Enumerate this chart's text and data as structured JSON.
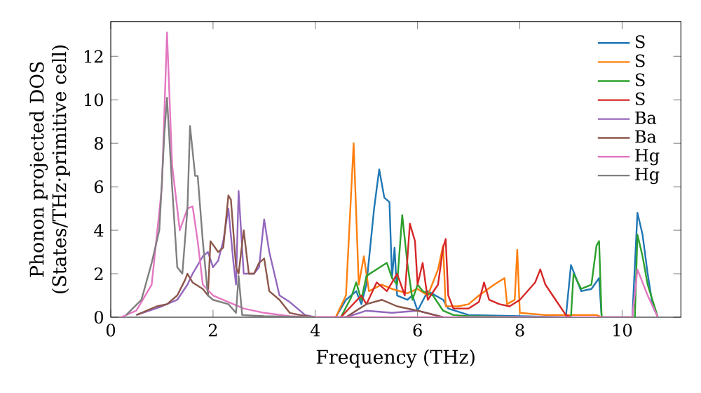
{
  "chart_data": {
    "type": "line",
    "xlabel": "Frequency (THz)",
    "ylabel": "Phonon projected DOS (States/THz·primitive cell)",
    "xlim": [
      0,
      11.15
    ],
    "ylim": [
      0,
      13.6
    ],
    "xticks": [
      0,
      2,
      4,
      6,
      8,
      10
    ],
    "yticks": [
      0,
      2,
      4,
      6,
      8,
      10,
      12
    ],
    "grid": false,
    "legend": "top right",
    "marker": "none",
    "line_style": "solid",
    "series": [
      {
        "name": "S",
        "color": "#1f77b4",
        "x": [
          4.4,
          4.6,
          4.8,
          4.9,
          5.0,
          5.15,
          5.25,
          5.35,
          5.45,
          5.5,
          5.55,
          5.6,
          5.8,
          5.9,
          6.0,
          6.2,
          6.5,
          6.6,
          7.0,
          8.0,
          8.9,
          9.0,
          9.1,
          9.2,
          9.4,
          9.55,
          9.6,
          10.2,
          10.3,
          10.4,
          10.5,
          10.6,
          10.7
        ],
        "values": [
          0,
          0.8,
          1.2,
          0.6,
          1.5,
          5,
          6.8,
          5.5,
          5.3,
          1.8,
          3.2,
          1,
          0.8,
          1.0,
          0.3,
          1.2,
          0.8,
          0.4,
          0.1,
          0.05,
          0,
          2.4,
          1.8,
          1.2,
          1.3,
          1.8,
          0,
          0,
          4.8,
          3.8,
          2,
          0.5,
          0
        ]
      },
      {
        "name": "S",
        "color": "#ff7f0e",
        "x": [
          4.4,
          4.6,
          4.75,
          4.85,
          4.95,
          5.05,
          5.3,
          5.5,
          5.8,
          6.0,
          6.2,
          6.4,
          6.5,
          6.55,
          6.8,
          7.0,
          7.2,
          7.5,
          7.7,
          7.75,
          7.9,
          7.95,
          8.0,
          8.5,
          9.0,
          9.5,
          9.6
        ],
        "values": [
          0,
          1.0,
          8.0,
          1.5,
          2.8,
          1.2,
          1.5,
          1.3,
          1.1,
          1.3,
          1.0,
          2.2,
          3.3,
          0.5,
          0.5,
          0.6,
          1.0,
          1.5,
          1.8,
          0.6,
          0.8,
          3.1,
          0.2,
          0.1,
          0.1,
          0.1,
          0
        ]
      },
      {
        "name": "S",
        "color": "#2ca02c",
        "x": [
          4.5,
          4.7,
          4.8,
          4.9,
          5.0,
          5.2,
          5.4,
          5.5,
          5.6,
          5.7,
          5.8,
          5.9,
          6.0,
          6.1,
          6.3,
          6.5,
          6.7,
          7.0,
          8.0,
          9.0,
          9.05,
          9.2,
          9.4,
          9.5,
          9.55,
          9.6,
          10.25,
          10.3,
          10.4,
          10.5,
          10.7
        ],
        "values": [
          0,
          0.9,
          1.6,
          0.8,
          1.9,
          2.2,
          2.5,
          1.8,
          1.5,
          4.7,
          2.5,
          0.8,
          1.5,
          1.2,
          1.0,
          0.3,
          0.1,
          0.05,
          0,
          0,
          2.0,
          1.3,
          1.5,
          3.3,
          3.5,
          0,
          0,
          3.8,
          2.8,
          1.5,
          0
        ]
      },
      {
        "name": "S",
        "color": "#d62728",
        "x": [
          4.5,
          4.7,
          4.9,
          5.0,
          5.2,
          5.4,
          5.6,
          5.75,
          5.85,
          5.95,
          6.0,
          6.1,
          6.2,
          6.4,
          6.5,
          6.55,
          6.6,
          6.7,
          7.0,
          7.2,
          7.3,
          7.4,
          7.6,
          7.8,
          8.0,
          8.3,
          8.4,
          8.5,
          8.7,
          8.9,
          9.0
        ],
        "values": [
          0,
          0.5,
          1.0,
          0.6,
          1.6,
          1.2,
          2.0,
          1.0,
          4.3,
          3.5,
          1.5,
          2.5,
          0.8,
          1.5,
          3.2,
          3.6,
          1.0,
          0.4,
          0.4,
          0.7,
          1.6,
          0.8,
          0.6,
          0.5,
          0.8,
          1.6,
          2.2,
          1.5,
          0.8,
          0.1,
          0
        ]
      },
      {
        "name": "Ba",
        "color": "#9467bd",
        "x": [
          0.5,
          1.0,
          1.3,
          1.5,
          1.6,
          1.8,
          1.9,
          2.0,
          2.1,
          2.2,
          2.3,
          2.4,
          2.45,
          2.5,
          2.6,
          2.8,
          2.9,
          3.0,
          3.1,
          3.3,
          3.5,
          3.7,
          3.8,
          4.0,
          4.6,
          5.0,
          5.5,
          6.0,
          6.5
        ],
        "values": [
          0.1,
          0.5,
          0.8,
          1.5,
          2.0,
          2.8,
          3.0,
          2.3,
          2.6,
          3.5,
          5.0,
          2.5,
          1.5,
          5.8,
          2.0,
          2.0,
          2.3,
          4.5,
          3.0,
          1.0,
          0.7,
          0.3,
          0.1,
          0,
          0,
          0.3,
          0.2,
          0.3,
          0
        ]
      },
      {
        "name": "Ba",
        "color": "#8c564b",
        "x": [
          0.5,
          0.9,
          1.1,
          1.3,
          1.45,
          1.5,
          1.6,
          1.8,
          1.9,
          1.95,
          2.1,
          2.2,
          2.3,
          2.35,
          2.45,
          2.5,
          2.6,
          2.7,
          2.8,
          2.9,
          3.0,
          3.1,
          3.3,
          3.5,
          3.7,
          4.0,
          4.6,
          5.0,
          5.3,
          5.6,
          6.0,
          6.5
        ],
        "values": [
          0.1,
          0.5,
          0.6,
          1.0,
          1.7,
          2.0,
          1.6,
          1.3,
          1.0,
          3.5,
          3.0,
          3.2,
          5.6,
          5.4,
          2.3,
          2.0,
          4.0,
          2.0,
          2.0,
          2.5,
          2.7,
          1.2,
          0.8,
          0.2,
          0.1,
          0,
          0,
          0.6,
          0.8,
          0.5,
          0.3,
          0
        ]
      },
      {
        "name": "Hg",
        "color": "#e377c2",
        "x": [
          0.2,
          0.5,
          0.8,
          1.0,
          1.1,
          1.2,
          1.35,
          1.5,
          1.6,
          1.7,
          1.8,
          2.0,
          2.3,
          2.6,
          3.0,
          3.5,
          4.0,
          10.2,
          10.3,
          10.5,
          10.7
        ],
        "values": [
          0,
          0.3,
          1.5,
          6,
          13.1,
          7,
          4,
          5,
          5.1,
          3.5,
          1.5,
          1.0,
          0.7,
          0.4,
          0.2,
          0.05,
          0,
          0,
          2.2,
          1,
          0
        ]
      },
      {
        "name": "Hg",
        "color": "#7f7f7f",
        "x": [
          0.3,
          0.6,
          0.8,
          0.95,
          1.05,
          1.1,
          1.2,
          1.3,
          1.4,
          1.5,
          1.55,
          1.65,
          1.7,
          1.8,
          1.9,
          2.0,
          2.3,
          2.45,
          2.5,
          2.57,
          3.0,
          4.0
        ],
        "values": [
          0.1,
          0.8,
          2.5,
          4,
          8.5,
          10.1,
          6,
          2.3,
          2.0,
          5,
          8.8,
          6.5,
          6.5,
          3.5,
          1.0,
          0.8,
          0.6,
          0.2,
          1.9,
          0.1,
          0.05,
          0
        ]
      }
    ]
  }
}
